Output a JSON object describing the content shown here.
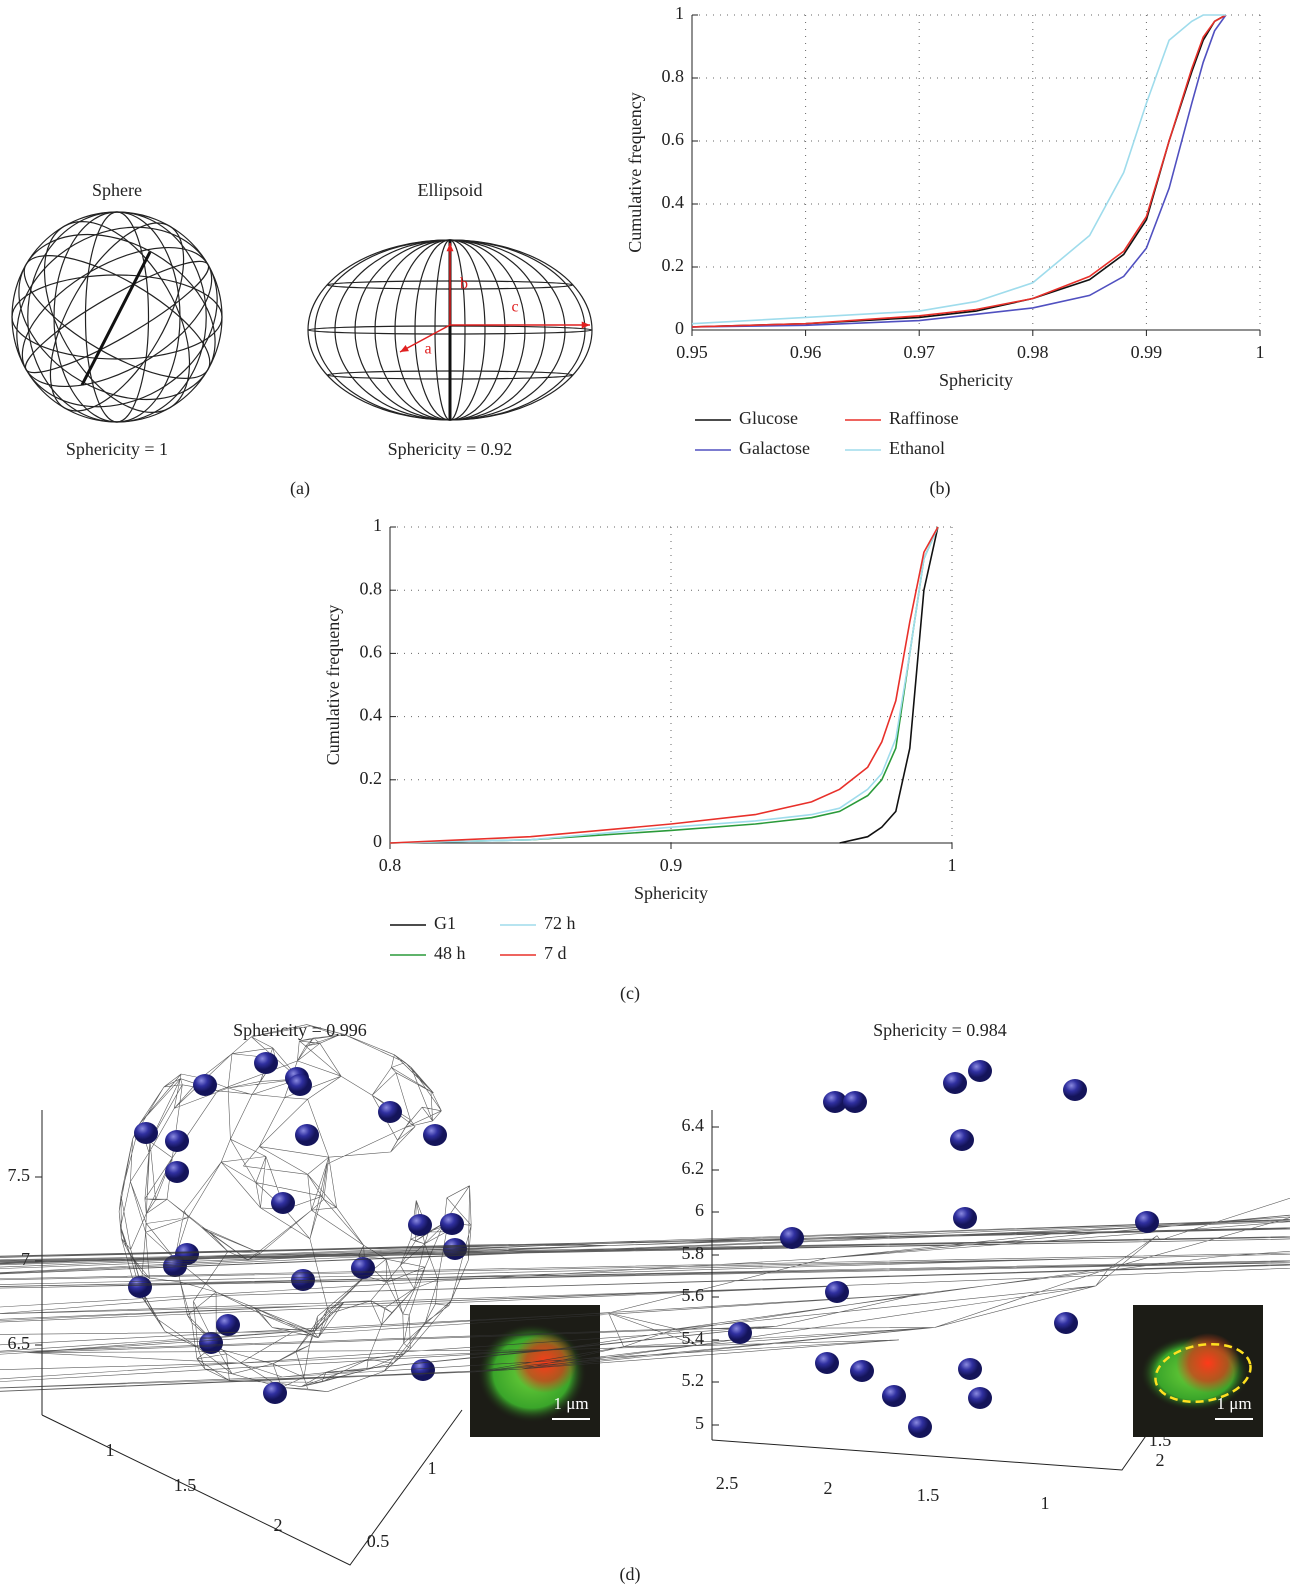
{
  "chart_data": [
    {
      "type": "line",
      "panel_label": "(b)",
      "x_label": "Sphericity",
      "y_label": "Cumulative frequency",
      "x": [
        0.95,
        0.96,
        0.97,
        0.975,
        0.98,
        0.985,
        0.988,
        0.99,
        0.992,
        0.994,
        0.995,
        0.996,
        0.997
      ],
      "series": [
        {
          "name": "Glucose",
          "color": "#111111",
          "values": [
            0.01,
            0.02,
            0.04,
            0.06,
            0.1,
            0.16,
            0.24,
            0.35,
            0.6,
            0.82,
            0.92,
            0.98,
            1
          ]
        },
        {
          "name": "Galactose",
          "color": "#5050c0",
          "values": [
            0.01,
            0.015,
            0.03,
            0.05,
            0.07,
            0.11,
            0.17,
            0.26,
            0.45,
            0.72,
            0.85,
            0.95,
            1
          ]
        },
        {
          "name": "Raffinose",
          "color": "#e8302a",
          "values": [
            0.01,
            0.02,
            0.045,
            0.065,
            0.1,
            0.17,
            0.25,
            0.36,
            0.6,
            0.83,
            0.93,
            0.98,
            1
          ]
        },
        {
          "name": "Ethanol",
          "color": "#9fdcec",
          "values": [
            0.02,
            0.04,
            0.06,
            0.09,
            0.15,
            0.3,
            0.5,
            0.72,
            0.92,
            0.98,
            1,
            1,
            1
          ]
        }
      ],
      "xlim": [
        0.95,
        1
      ],
      "ylim": [
        0,
        1
      ],
      "xticks": [
        0.95,
        0.96,
        0.97,
        0.98,
        0.99,
        1
      ],
      "yticks": [
        0,
        0.2,
        0.4,
        0.6,
        0.8,
        1
      ],
      "grid": true
    },
    {
      "type": "line",
      "panel_label": "(c)",
      "x_label": "Sphericity",
      "y_label": "Cumulative frequency",
      "x": [
        0.8,
        0.85,
        0.9,
        0.93,
        0.95,
        0.96,
        0.97,
        0.975,
        0.98,
        0.985,
        0.99,
        0.995
      ],
      "series": [
        {
          "name": "G1",
          "color": "#111111",
          "values": [
            null,
            null,
            null,
            null,
            null,
            0,
            0.02,
            0.05,
            0.1,
            0.3,
            0.8,
            1
          ]
        },
        {
          "name": "48 h",
          "color": "#2a9a3a",
          "values": [
            0,
            0.01,
            0.04,
            0.06,
            0.08,
            0.1,
            0.15,
            0.2,
            0.3,
            0.6,
            0.9,
            1
          ]
        },
        {
          "name": "72 h",
          "color": "#9fdcec",
          "values": [
            0,
            0.01,
            0.05,
            0.07,
            0.09,
            0.11,
            0.17,
            0.22,
            0.33,
            0.6,
            0.9,
            1
          ]
        },
        {
          "name": "7 d",
          "color": "#e8302a",
          "values": [
            0,
            0.02,
            0.06,
            0.09,
            0.13,
            0.17,
            0.24,
            0.32,
            0.45,
            0.7,
            0.92,
            1
          ]
        }
      ],
      "xlim": [
        0.8,
        1
      ],
      "ylim": [
        0,
        1
      ],
      "xticks": [
        0.8,
        0.9,
        1
      ],
      "yticks": [
        0,
        0.2,
        0.4,
        0.6,
        0.8,
        1
      ],
      "grid": true
    }
  ],
  "panel_a": {
    "label": "(a)",
    "sphere_title": "Sphere",
    "ellipsoid_title": "Ellipsoid",
    "sphere_caption": "Sphericity = 1",
    "ellipsoid_caption": "Sphericity = 0.92",
    "axis_names": [
      "a",
      "b",
      "c"
    ]
  },
  "panel_d": {
    "label": "(d)",
    "plots": [
      {
        "title": "Sphericity = 0.996",
        "z_ticks": [
          "7.5",
          "7",
          "6.5"
        ],
        "x_ticks": [
          "1",
          "1.5",
          "2"
        ],
        "y_ticks": [
          "0.5",
          "1"
        ],
        "scale_bar": "1 μm"
      },
      {
        "title": "Sphericity = 0.984",
        "z_ticks": [
          "6.4",
          "6.2",
          "6",
          "5.8",
          "5.6",
          "5.4",
          "5.2",
          "5"
        ],
        "x_ticks": [
          "2.5",
          "2",
          "1.5",
          "1"
        ],
        "y_ticks": [
          "1.5",
          "2"
        ],
        "scale_bar": "1 μm"
      }
    ]
  }
}
